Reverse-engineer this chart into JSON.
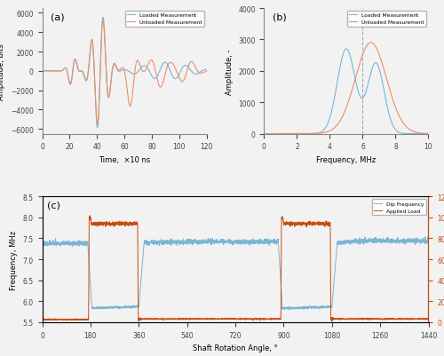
{
  "panel_a": {
    "label": "(a)",
    "xlabel": "Time,  ×10 ns",
    "ylabel": "Amplitude, bits",
    "xlim": [
      0,
      120
    ],
    "ylim": [
      -6500,
      6500
    ],
    "yticks": [
      -6000,
      -4000,
      -2000,
      0,
      2000,
      4000,
      6000
    ],
    "xticks": [
      0,
      20,
      40,
      60,
      80,
      100,
      120
    ],
    "legend": [
      "Loaded Measurement",
      "Unloaded Measurement"
    ],
    "loaded_color": "#7ab5d4",
    "unloaded_color": "#e8906a"
  },
  "panel_b": {
    "label": "(b)",
    "xlabel": "Frequency, MHz",
    "ylabel": "Amplitude, -",
    "xlim": [
      0,
      10
    ],
    "ylim": [
      0,
      4000
    ],
    "yticks": [
      0,
      1000,
      2000,
      3000,
      4000
    ],
    "xticks": [
      0,
      2,
      4,
      6,
      8,
      10
    ],
    "legend": [
      "Loaded Measurement",
      "Unloaded Measurement"
    ],
    "loaded_color": "#7ab5d4",
    "unloaded_color": "#e8906a",
    "dip_freq": 6.0
  },
  "panel_c": {
    "label": "(c)",
    "xlabel": "Shaft Rotation Angle, °",
    "ylabel_left": "Frequency, MHz",
    "ylabel_right": "Applied Load, kN",
    "xlim": [
      0,
      1440
    ],
    "ylim_left": [
      5.5,
      8.5
    ],
    "ylim_right": [
      0,
      120
    ],
    "yticks_left": [
      5.5,
      6.0,
      6.5,
      7.0,
      7.5,
      8.0,
      8.5
    ],
    "yticks_right": [
      0,
      20,
      40,
      60,
      80,
      100,
      120
    ],
    "xticks": [
      0,
      180,
      360,
      540,
      720,
      900,
      1080,
      1260,
      1440
    ],
    "legend": [
      "Dip Frequency",
      "Applied Load"
    ],
    "freq_color": "#7ab5d4",
    "load_color": "#c84b0e"
  },
  "background_color": "#f2f2f2"
}
